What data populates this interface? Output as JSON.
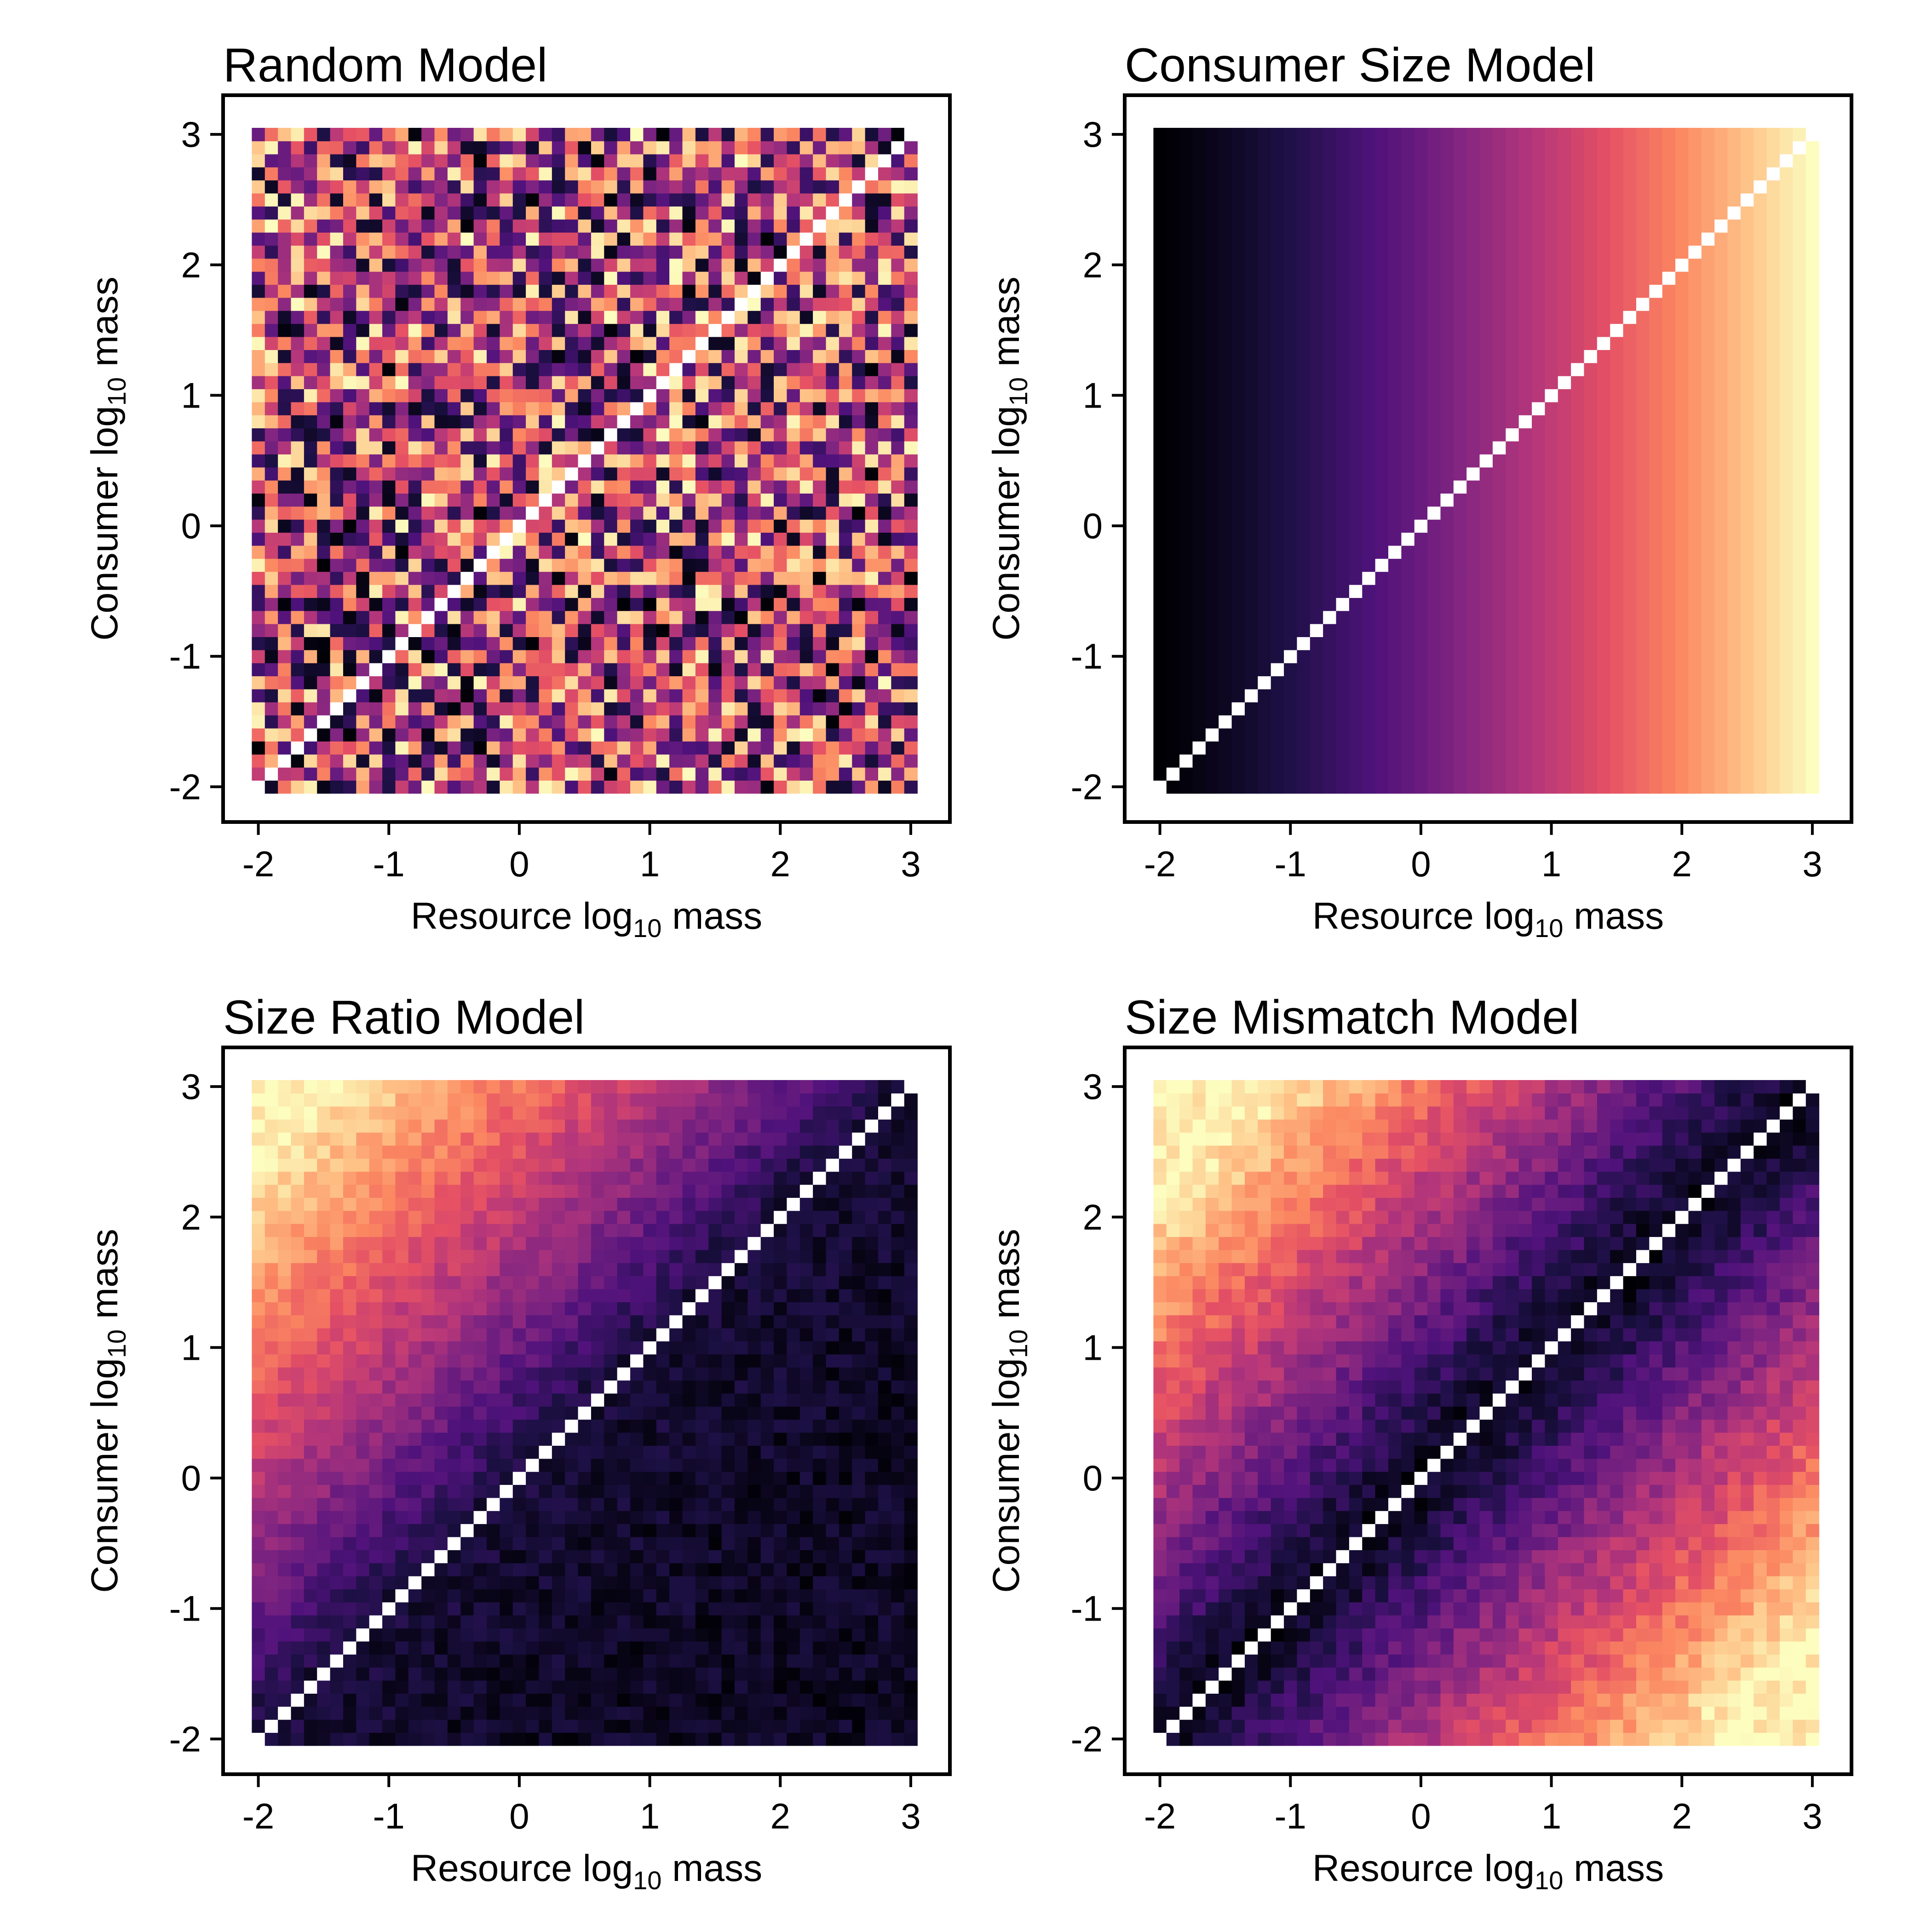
{
  "figure": {
    "layout": "2x2 grid of heatmaps",
    "colormap": "magma",
    "colormap_stops": [
      "#000004",
      "#1c1044",
      "#4f127b",
      "#812581",
      "#b5367a",
      "#e55064",
      "#fb8761",
      "#fec287",
      "#fcfdbf"
    ],
    "diagonal_color": "#ffffff",
    "frame_color": "#000000"
  },
  "chart_data": [
    {
      "type": "heatmap",
      "title": "Random Model",
      "model": "random",
      "xlabel": {
        "main": "Resource log",
        "sub": "10",
        "suffix": " mass"
      },
      "ylabel": {
        "main": "Consumer log",
        "sub": "10",
        "suffix": " mass"
      },
      "xlim": [
        -2.27,
        3.3
      ],
      "ylim": [
        -2.27,
        3.3
      ],
      "cell_range": [
        -2.05,
        3.05
      ],
      "grid_cells": 51,
      "xticks": [
        -2,
        -1,
        0,
        1,
        2,
        3
      ],
      "yticks": [
        -2,
        -1,
        0,
        1,
        2,
        3
      ],
      "xtick_labels": [
        "-2",
        "-1",
        "0",
        "1",
        "2",
        "3"
      ],
      "ytick_labels": [
        "-2",
        "-1",
        "0",
        "1",
        "2",
        "3"
      ],
      "diagonal_blank": true,
      "value_description": "intensity uniformly random across all consumer/resource pairs, range 0-1"
    },
    {
      "type": "heatmap",
      "title": "Consumer Size Model",
      "model": "consumer_size",
      "xlabel": {
        "main": "Resource log",
        "sub": "10",
        "suffix": " mass"
      },
      "ylabel": {
        "main": "Consumer log",
        "sub": "10",
        "suffix": " mass"
      },
      "xlim": [
        -2.27,
        3.3
      ],
      "ylim": [
        -2.27,
        3.3
      ],
      "cell_range": [
        -2.05,
        3.05
      ],
      "grid_cells": 51,
      "xticks": [
        -2,
        -1,
        0,
        1,
        2,
        3
      ],
      "yticks": [
        -2,
        -1,
        0,
        1,
        2,
        3
      ],
      "xtick_labels": [
        "-2",
        "-1",
        "0",
        "1",
        "2",
        "3"
      ],
      "ytick_labels": [
        "-2",
        "-1",
        "0",
        "1",
        "2",
        "3"
      ],
      "diagonal_blank": true,
      "value_description": "intensity depends only on resource mass, increasing from ~0 at x=-2 to ~1 at x=3"
    },
    {
      "type": "heatmap",
      "title": "Size Ratio Model",
      "model": "size_ratio",
      "xlabel": {
        "main": "Resource log",
        "sub": "10",
        "suffix": " mass"
      },
      "ylabel": {
        "main": "Consumer log",
        "sub": "10",
        "suffix": " mass"
      },
      "xlim": [
        -2.27,
        3.3
      ],
      "ylim": [
        -2.27,
        3.3
      ],
      "cell_range": [
        -2.05,
        3.05
      ],
      "grid_cells": 51,
      "xticks": [
        -2,
        -1,
        0,
        1,
        2,
        3
      ],
      "yticks": [
        -2,
        -1,
        0,
        1,
        2,
        3
      ],
      "xtick_labels": [
        "-2",
        "-1",
        "0",
        "1",
        "2",
        "3"
      ],
      "ytick_labels": [
        "-2",
        "-1",
        "0",
        "1",
        "2",
        "3"
      ],
      "diagonal_blank": true,
      "value_description": "intensity increases with (consumer - resource) log mass; dark below diagonal, bright toward top-left"
    },
    {
      "type": "heatmap",
      "title": "Size Mismatch Model",
      "model": "size_mismatch",
      "xlabel": {
        "main": "Resource log",
        "sub": "10",
        "suffix": " mass"
      },
      "ylabel": {
        "main": "Consumer log",
        "sub": "10",
        "suffix": " mass"
      },
      "xlim": [
        -2.27,
        3.3
      ],
      "ylim": [
        -2.27,
        3.3
      ],
      "cell_range": [
        -2.05,
        3.05
      ],
      "grid_cells": 51,
      "xticks": [
        -2,
        -1,
        0,
        1,
        2,
        3
      ],
      "yticks": [
        -2,
        -1,
        0,
        1,
        2,
        3
      ],
      "xtick_labels": [
        "-2",
        "-1",
        "0",
        "1",
        "2",
        "3"
      ],
      "ytick_labels": [
        "-2",
        "-1",
        "0",
        "1",
        "2",
        "3"
      ],
      "diagonal_blank": true,
      "value_description": "intensity increases with |consumer - resource| log mass; dark near diagonal, bright at top-left and bottom-right"
    }
  ]
}
